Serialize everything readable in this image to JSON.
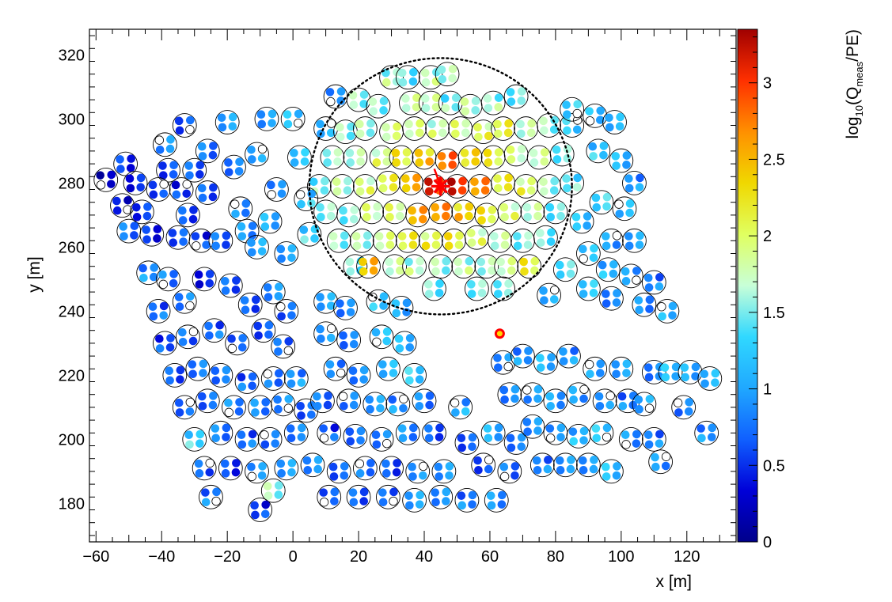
{
  "chart_data": {
    "type": "scatter",
    "title": "",
    "xlabel": "x [m]",
    "ylabel": "y [m]",
    "xlim": [
      -62,
      135
    ],
    "ylim": [
      168,
      328
    ],
    "x_ticks": [
      -60,
      -40,
      -20,
      0,
      20,
      40,
      60,
      80,
      100,
      120
    ],
    "y_ticks": [
      180,
      200,
      220,
      240,
      260,
      280,
      300,
      320
    ],
    "color_scale": {
      "label": "log10(Qmeas/PE)",
      "label_parts": {
        "base": "log",
        "sub1": "10",
        "open": "(Q",
        "sub2": "meas",
        "close": "/PE)"
      },
      "min": 0,
      "max": 3.35,
      "ticks": [
        0,
        0.5,
        1,
        1.5,
        2,
        2.5,
        3
      ],
      "tick_labels": [
        "0",
        "0.5",
        "1",
        "1.5",
        "2",
        "2.5",
        "3"
      ],
      "palette": [
        "#00008b",
        "#0000d8",
        "#1060ff",
        "#20a8ff",
        "#30d8ff",
        "#c8ffd8",
        "#e0ff60",
        "#f0d800",
        "#ff9000",
        "#ff3000",
        "#a00000"
      ]
    },
    "core_position": {
      "x": 45,
      "y": 279
    },
    "shower_circle": {
      "center_x": 45,
      "center_y": 279,
      "radius": 40
    },
    "hot_station": {
      "x": 63,
      "y": 233
    },
    "stations": [
      {
        "x": 30,
        "y": 313,
        "v": 1.65
      },
      {
        "x": 35,
        "y": 313,
        "v": 1.4
      },
      {
        "x": 42,
        "y": 313,
        "v": 1.7
      },
      {
        "x": 47,
        "y": 314,
        "v": 1.6
      },
      {
        "x": 13,
        "y": 307,
        "v": 0.9
      },
      {
        "x": 20,
        "y": 306,
        "v": 1.5
      },
      {
        "x": 26,
        "y": 304,
        "v": 1.6
      },
      {
        "x": 36,
        "y": 305,
        "v": 1.7
      },
      {
        "x": 42,
        "y": 305,
        "v": 1.8
      },
      {
        "x": 48,
        "y": 305,
        "v": 1.5
      },
      {
        "x": 54,
        "y": 304,
        "v": 1.7
      },
      {
        "x": 61,
        "y": 305,
        "v": 1.6
      },
      {
        "x": 68,
        "y": 307,
        "v": 1.4
      },
      {
        "x": 10,
        "y": 297,
        "v": 1.2
      },
      {
        "x": 16,
        "y": 296,
        "v": 1.5
      },
      {
        "x": 22,
        "y": 297,
        "v": 1.7
      },
      {
        "x": 30,
        "y": 296,
        "v": 1.8
      },
      {
        "x": 37,
        "y": 297,
        "v": 1.9
      },
      {
        "x": 44,
        "y": 297,
        "v": 1.8
      },
      {
        "x": 51,
        "y": 297,
        "v": 1.9
      },
      {
        "x": 58,
        "y": 296,
        "v": 2.0
      },
      {
        "x": 64,
        "y": 297,
        "v": 2.1
      },
      {
        "x": 71,
        "y": 297,
        "v": 1.8
      },
      {
        "x": 78,
        "y": 298,
        "v": 1.5
      },
      {
        "x": 85,
        "y": 298,
        "v": 1.3
      },
      {
        "x": 12,
        "y": 288,
        "v": 1.5
      },
      {
        "x": 19,
        "y": 288,
        "v": 1.7
      },
      {
        "x": 27,
        "y": 288,
        "v": 1.9
      },
      {
        "x": 33,
        "y": 288,
        "v": 2.2
      },
      {
        "x": 40,
        "y": 288,
        "v": 2.4
      },
      {
        "x": 47,
        "y": 287,
        "v": 2.8
      },
      {
        "x": 54,
        "y": 288,
        "v": 2.4
      },
      {
        "x": 61,
        "y": 288,
        "v": 2.1
      },
      {
        "x": 68,
        "y": 289,
        "v": 1.9
      },
      {
        "x": 75,
        "y": 288,
        "v": 1.7
      },
      {
        "x": 82,
        "y": 289,
        "v": 1.5
      },
      {
        "x": 8,
        "y": 279,
        "v": 1.5
      },
      {
        "x": 15,
        "y": 279,
        "v": 1.7
      },
      {
        "x": 22,
        "y": 279,
        "v": 1.9
      },
      {
        "x": 29,
        "y": 280,
        "v": 2.1
      },
      {
        "x": 36,
        "y": 280,
        "v": 2.6
      },
      {
        "x": 43,
        "y": 279,
        "v": 3.0
      },
      {
        "x": 50,
        "y": 279,
        "v": 3.2
      },
      {
        "x": 57,
        "y": 279,
        "v": 2.6
      },
      {
        "x": 64,
        "y": 280,
        "v": 2.2
      },
      {
        "x": 71,
        "y": 279,
        "v": 2.0
      },
      {
        "x": 78,
        "y": 279,
        "v": 1.6
      },
      {
        "x": 85,
        "y": 280,
        "v": 1.4
      },
      {
        "x": 10,
        "y": 271,
        "v": 1.5
      },
      {
        "x": 17,
        "y": 270,
        "v": 1.6
      },
      {
        "x": 24,
        "y": 271,
        "v": 1.8
      },
      {
        "x": 31,
        "y": 271,
        "v": 2.0
      },
      {
        "x": 38,
        "y": 270,
        "v": 2.5
      },
      {
        "x": 45,
        "y": 271,
        "v": 2.7
      },
      {
        "x": 52,
        "y": 271,
        "v": 2.4
      },
      {
        "x": 59,
        "y": 270,
        "v": 2.2
      },
      {
        "x": 66,
        "y": 271,
        "v": 1.9
      },
      {
        "x": 73,
        "y": 271,
        "v": 1.7
      },
      {
        "x": 80,
        "y": 271,
        "v": 1.5
      },
      {
        "x": 14,
        "y": 262,
        "v": 1.5
      },
      {
        "x": 21,
        "y": 262,
        "v": 1.7
      },
      {
        "x": 28,
        "y": 262,
        "v": 1.8
      },
      {
        "x": 35,
        "y": 262,
        "v": 2.2
      },
      {
        "x": 42,
        "y": 262,
        "v": 2.1
      },
      {
        "x": 49,
        "y": 262,
        "v": 2.2
      },
      {
        "x": 56,
        "y": 263,
        "v": 1.9
      },
      {
        "x": 63,
        "y": 262,
        "v": 1.7
      },
      {
        "x": 70,
        "y": 262,
        "v": 1.6
      },
      {
        "x": 77,
        "y": 263,
        "v": 1.4
      },
      {
        "x": 19,
        "y": 254,
        "v": 1.5
      },
      {
        "x": 23,
        "y": 254,
        "v": 2.4
      },
      {
        "x": 31,
        "y": 254,
        "v": 1.8
      },
      {
        "x": 37,
        "y": 254,
        "v": 1.7
      },
      {
        "x": 45,
        "y": 254,
        "v": 1.6
      },
      {
        "x": 52,
        "y": 254,
        "v": 1.7
      },
      {
        "x": 59,
        "y": 254,
        "v": 1.6
      },
      {
        "x": 65,
        "y": 254,
        "v": 1.9
      },
      {
        "x": 72,
        "y": 254,
        "v": 2.1
      },
      {
        "x": 43,
        "y": 247,
        "v": 1.5
      },
      {
        "x": 56,
        "y": 247,
        "v": 1.4
      },
      {
        "x": 64,
        "y": 247,
        "v": 1.5
      },
      {
        "x": -57,
        "y": 281,
        "v": 0.3
      },
      {
        "x": -51,
        "y": 286,
        "v": 0.5
      },
      {
        "x": -52,
        "y": 273,
        "v": 0.4
      },
      {
        "x": -48,
        "y": 280,
        "v": 0.4
      },
      {
        "x": -46,
        "y": 271,
        "v": 0.6
      },
      {
        "x": -50,
        "y": 265,
        "v": 0.7
      },
      {
        "x": -43,
        "y": 264,
        "v": 0.5
      },
      {
        "x": -39,
        "y": 292,
        "v": 0.8
      },
      {
        "x": -38,
        "y": 284,
        "v": 0.6
      },
      {
        "x": -34,
        "y": 278,
        "v": 0.5
      },
      {
        "x": -32,
        "y": 270,
        "v": 0.6
      },
      {
        "x": -28,
        "y": 262,
        "v": 0.5
      },
      {
        "x": -35,
        "y": 263,
        "v": 0.6
      },
      {
        "x": -33,
        "y": 298,
        "v": 0.7
      },
      {
        "x": -26,
        "y": 290,
        "v": 0.7
      },
      {
        "x": -26,
        "y": 277,
        "v": 0.7
      },
      {
        "x": -20,
        "y": 299,
        "v": 0.9
      },
      {
        "x": -18,
        "y": 285,
        "v": 0.8
      },
      {
        "x": -16,
        "y": 272,
        "v": 0.8
      },
      {
        "x": -14,
        "y": 265,
        "v": 0.9
      },
      {
        "x": -11,
        "y": 289,
        "v": 0.9
      },
      {
        "x": -8,
        "y": 300,
        "v": 0.9
      },
      {
        "x": -5,
        "y": 278,
        "v": 0.9
      },
      {
        "x": -7,
        "y": 268,
        "v": 1.0
      },
      {
        "x": 0,
        "y": 300,
        "v": 1.2
      },
      {
        "x": 2,
        "y": 288,
        "v": 1.1
      },
      {
        "x": -2,
        "y": 258,
        "v": 1.0
      },
      {
        "x": 5,
        "y": 264,
        "v": 1.3
      },
      {
        "x": -22,
        "y": 262,
        "v": 0.7
      },
      {
        "x": 4,
        "y": 275,
        "v": 1.2
      },
      {
        "x": -11,
        "y": 260,
        "v": 1.0
      },
      {
        "x": -41,
        "y": 278,
        "v": 0.7
      },
      {
        "x": -30,
        "y": 284,
        "v": 0.6
      },
      {
        "x": 92,
        "y": 301,
        "v": 1.2
      },
      {
        "x": 98,
        "y": 299,
        "v": 1.0
      },
      {
        "x": 85,
        "y": 303,
        "v": 1.3
      },
      {
        "x": 93,
        "y": 290,
        "v": 1.2
      },
      {
        "x": 100,
        "y": 287,
        "v": 1.1
      },
      {
        "x": 104,
        "y": 280,
        "v": 0.9
      },
      {
        "x": 94,
        "y": 274,
        "v": 1.3
      },
      {
        "x": 101,
        "y": 272,
        "v": 1.2
      },
      {
        "x": 88,
        "y": 268,
        "v": 1.1
      },
      {
        "x": 97,
        "y": 262,
        "v": 1.0
      },
      {
        "x": 104,
        "y": 262,
        "v": 0.9
      },
      {
        "x": 90,
        "y": 258,
        "v": 1.2
      },
      {
        "x": 96,
        "y": 253,
        "v": 1.1
      },
      {
        "x": 103,
        "y": 251,
        "v": 0.9
      },
      {
        "x": 110,
        "y": 249,
        "v": 0.8
      },
      {
        "x": 90,
        "y": 247,
        "v": 1.2
      },
      {
        "x": 97,
        "y": 244,
        "v": 0.9
      },
      {
        "x": 107,
        "y": 242,
        "v": 0.8
      },
      {
        "x": 114,
        "y": 240,
        "v": 1.2
      },
      {
        "x": 83,
        "y": 253,
        "v": 1.3
      },
      {
        "x": 78,
        "y": 245,
        "v": 1.1
      },
      {
        "x": -44,
        "y": 252,
        "v": 0.9
      },
      {
        "x": -38,
        "y": 250,
        "v": 0.8
      },
      {
        "x": -41,
        "y": 240,
        "v": 0.7
      },
      {
        "x": -33,
        "y": 243,
        "v": 0.8
      },
      {
        "x": -27,
        "y": 250,
        "v": 0.5
      },
      {
        "x": -19,
        "y": 248,
        "v": 0.6
      },
      {
        "x": -13,
        "y": 242,
        "v": 0.7
      },
      {
        "x": -6,
        "y": 246,
        "v": 0.8
      },
      {
        "x": -2,
        "y": 240,
        "v": 0.7
      },
      {
        "x": -39,
        "y": 230,
        "v": 0.6
      },
      {
        "x": -32,
        "y": 232,
        "v": 0.7
      },
      {
        "x": -24,
        "y": 234,
        "v": 0.7
      },
      {
        "x": -17,
        "y": 230,
        "v": 0.6
      },
      {
        "x": -9,
        "y": 234,
        "v": 0.7
      },
      {
        "x": -3,
        "y": 229,
        "v": 0.6
      },
      {
        "x": -36,
        "y": 220,
        "v": 0.7
      },
      {
        "x": -29,
        "y": 222,
        "v": 0.7
      },
      {
        "x": -22,
        "y": 220,
        "v": 0.8
      },
      {
        "x": -14,
        "y": 218,
        "v": 0.7
      },
      {
        "x": -6,
        "y": 219,
        "v": 0.8
      },
      {
        "x": 1,
        "y": 219,
        "v": 0.9
      },
      {
        "x": -33,
        "y": 210,
        "v": 0.7
      },
      {
        "x": -26,
        "y": 212,
        "v": 0.8
      },
      {
        "x": -18,
        "y": 210,
        "v": 0.8
      },
      {
        "x": -10,
        "y": 210,
        "v": 0.9
      },
      {
        "x": -3,
        "y": 211,
        "v": 0.8
      },
      {
        "x": 4,
        "y": 209,
        "v": 0.7
      },
      {
        "x": -30,
        "y": 200,
        "v": 1.3
      },
      {
        "x": -22,
        "y": 202,
        "v": 0.8
      },
      {
        "x": -14,
        "y": 200,
        "v": 0.7
      },
      {
        "x": -7,
        "y": 200,
        "v": 0.7
      },
      {
        "x": 1,
        "y": 202,
        "v": 0.9
      },
      {
        "x": -27,
        "y": 191,
        "v": 0.6
      },
      {
        "x": -19,
        "y": 191,
        "v": 0.6
      },
      {
        "x": -11,
        "y": 190,
        "v": 0.8
      },
      {
        "x": -2,
        "y": 191,
        "v": 1.0
      },
      {
        "x": -25,
        "y": 182,
        "v": 0.8
      },
      {
        "x": -6,
        "y": 184,
        "v": 1.6
      },
      {
        "x": -10,
        "y": 178,
        "v": 0.5
      },
      {
        "x": 10,
        "y": 243,
        "v": 1.0
      },
      {
        "x": 16,
        "y": 241,
        "v": 0.9
      },
      {
        "x": 26,
        "y": 243,
        "v": 1.2
      },
      {
        "x": 33,
        "y": 241,
        "v": 1.1
      },
      {
        "x": 10,
        "y": 233,
        "v": 0.9
      },
      {
        "x": 17,
        "y": 231,
        "v": 0.8
      },
      {
        "x": 27,
        "y": 232,
        "v": 1.3
      },
      {
        "x": 34,
        "y": 230,
        "v": 1.1
      },
      {
        "x": 13,
        "y": 222,
        "v": 0.9
      },
      {
        "x": 20,
        "y": 220,
        "v": 0.8
      },
      {
        "x": 29,
        "y": 222,
        "v": 1.2
      },
      {
        "x": 37,
        "y": 220,
        "v": 1.2
      },
      {
        "x": 9,
        "y": 212,
        "v": 0.8
      },
      {
        "x": 17,
        "y": 212,
        "v": 0.7
      },
      {
        "x": 25,
        "y": 211,
        "v": 1.0
      },
      {
        "x": 32,
        "y": 211,
        "v": 0.9
      },
      {
        "x": 40,
        "y": 212,
        "v": 0.8
      },
      {
        "x": 11,
        "y": 202,
        "v": 0.6
      },
      {
        "x": 19,
        "y": 201,
        "v": 0.7
      },
      {
        "x": 27,
        "y": 200,
        "v": 0.9
      },
      {
        "x": 35,
        "y": 202,
        "v": 0.8
      },
      {
        "x": 43,
        "y": 202,
        "v": 0.7
      },
      {
        "x": 6,
        "y": 192,
        "v": 0.8
      },
      {
        "x": 14,
        "y": 190,
        "v": 0.7
      },
      {
        "x": 22,
        "y": 191,
        "v": 0.7
      },
      {
        "x": 30,
        "y": 191,
        "v": 0.6
      },
      {
        "x": 38,
        "y": 190,
        "v": 0.8
      },
      {
        "x": 46,
        "y": 190,
        "v": 0.9
      },
      {
        "x": 11,
        "y": 182,
        "v": 0.7
      },
      {
        "x": 20,
        "y": 182,
        "v": 0.6
      },
      {
        "x": 29,
        "y": 182,
        "v": 0.7
      },
      {
        "x": 37,
        "y": 181,
        "v": 0.9
      },
      {
        "x": 45,
        "y": 182,
        "v": 0.9
      },
      {
        "x": 53,
        "y": 181,
        "v": 0.8
      },
      {
        "x": 62,
        "y": 181,
        "v": 0.9
      },
      {
        "x": 51,
        "y": 210,
        "v": 1.0
      },
      {
        "x": 53,
        "y": 199,
        "v": 0.6
      },
      {
        "x": 58,
        "y": 192,
        "v": 0.7
      },
      {
        "x": 61,
        "y": 202,
        "v": 1.0
      },
      {
        "x": 66,
        "y": 190,
        "v": 0.8
      },
      {
        "x": 68,
        "y": 199,
        "v": 0.7
      },
      {
        "x": 64,
        "y": 224,
        "v": 0.9
      },
      {
        "x": 70,
        "y": 226,
        "v": 0.9
      },
      {
        "x": 77,
        "y": 224,
        "v": 1.1
      },
      {
        "x": 84,
        "y": 226,
        "v": 0.9
      },
      {
        "x": 66,
        "y": 214,
        "v": 0.8
      },
      {
        "x": 73,
        "y": 214,
        "v": 1.0
      },
      {
        "x": 80,
        "y": 212,
        "v": 0.9
      },
      {
        "x": 87,
        "y": 214,
        "v": 1.0
      },
      {
        "x": 73,
        "y": 204,
        "v": 0.8
      },
      {
        "x": 80,
        "y": 202,
        "v": 0.9
      },
      {
        "x": 87,
        "y": 201,
        "v": 1.1
      },
      {
        "x": 94,
        "y": 202,
        "v": 1.2
      },
      {
        "x": 76,
        "y": 192,
        "v": 0.8
      },
      {
        "x": 83,
        "y": 192,
        "v": 0.9
      },
      {
        "x": 90,
        "y": 192,
        "v": 1.0
      },
      {
        "x": 97,
        "y": 190,
        "v": 1.1
      },
      {
        "x": 92,
        "y": 222,
        "v": 1.1
      },
      {
        "x": 100,
        "y": 222,
        "v": 0.9
      },
      {
        "x": 95,
        "y": 212,
        "v": 1.0
      },
      {
        "x": 102,
        "y": 212,
        "v": 0.8
      },
      {
        "x": 103,
        "y": 200,
        "v": 0.9
      },
      {
        "x": 110,
        "y": 200,
        "v": 0.8
      },
      {
        "x": 107,
        "y": 211,
        "v": 1.0
      },
      {
        "x": 110,
        "y": 221,
        "v": 0.9
      },
      {
        "x": 115,
        "y": 221,
        "v": 1.1
      },
      {
        "x": 121,
        "y": 221,
        "v": 1.1
      },
      {
        "x": 127,
        "y": 219,
        "v": 1.0
      },
      {
        "x": 119,
        "y": 210,
        "v": 0.8
      },
      {
        "x": 126,
        "y": 202,
        "v": 0.9
      },
      {
        "x": 112,
        "y": 193,
        "v": 0.9
      }
    ]
  }
}
